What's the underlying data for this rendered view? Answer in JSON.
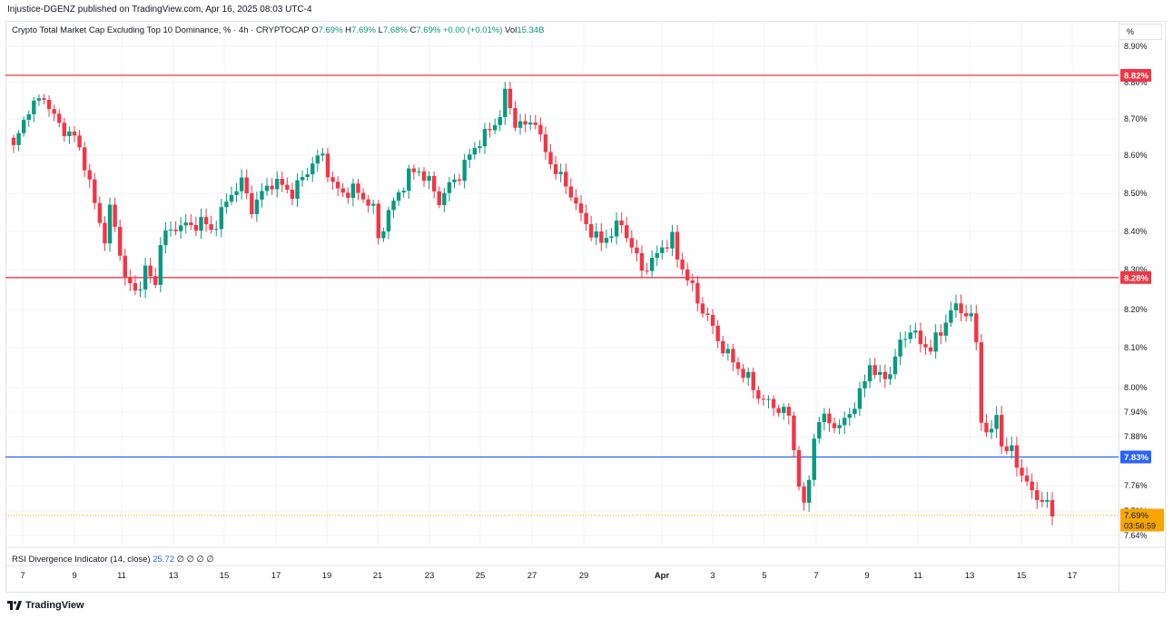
{
  "header": {
    "publish_line": "Injustice-DGENZ published on TradingView.com, Apr 16, 2025 08:03 UTC-4"
  },
  "legend": {
    "title": "Crypto Total Market Cap Excluding Top 10 Dominance, % · 4h · CRYPTOCAP",
    "open_label": "O",
    "open": "7.69%",
    "high_label": "H",
    "high": "7.69%",
    "low_label": "L",
    "low": "7.68%",
    "close_label": "C",
    "close": "7.69%",
    "change": "+0.00 (+0.01%)",
    "vol_label": "Vol",
    "vol": "15.34B"
  },
  "scale_button": "%",
  "rsi": {
    "label": "RSI Divergence Indicator (14, close)",
    "value": "25.72",
    "empties": [
      "∅",
      "∅",
      "∅",
      "∅"
    ]
  },
  "footer": {
    "brand": "TradingView"
  },
  "colors": {
    "up": "#089981",
    "down": "#f23645",
    "red_line": "#f23645",
    "blue_line": "#2962ff",
    "last_price": "#f7a600"
  },
  "chart_data": {
    "type": "candlestick",
    "x_tick_labels": [
      "7",
      "9",
      "11",
      "13",
      "15",
      "17",
      "19",
      "21",
      "23",
      "25",
      "27",
      "29",
      "Apr",
      "3",
      "5",
      "7",
      "9",
      "11",
      "13",
      "15",
      "17"
    ],
    "y_tick_labels": [
      "8.90%",
      "8.80%",
      "8.70%",
      "8.60%",
      "8.50%",
      "8.40%",
      "8.30%",
      "8.20%",
      "8.10%",
      "8.00%",
      "7.94%",
      "7.88%",
      "7.76%",
      "7.70%",
      "7.64%"
    ],
    "y_ticks": [
      8.9,
      8.8,
      8.7,
      8.6,
      8.5,
      8.4,
      8.3,
      8.2,
      8.1,
      8.0,
      7.94,
      7.88,
      7.76,
      7.7,
      7.64
    ],
    "ylim": [
      7.64,
      8.9
    ],
    "horizontal_lines": [
      {
        "value": 8.82,
        "label": "8.82%",
        "color": "red"
      },
      {
        "value": 8.28,
        "label": "8.28%",
        "color": "red"
      },
      {
        "value": 7.83,
        "label": "7.83%",
        "color": "blue"
      }
    ],
    "last_price": {
      "value": 7.69,
      "label": "7.69%",
      "countdown": "03:56:59"
    },
    "close_path": [
      [
        0,
        8.62
      ],
      [
        3,
        8.73
      ],
      [
        6,
        8.76
      ],
      [
        9,
        8.68
      ],
      [
        12,
        8.65
      ],
      [
        14,
        8.58
      ],
      [
        16,
        8.47
      ],
      [
        18,
        8.38
      ],
      [
        19,
        8.46
      ],
      [
        21,
        8.35
      ],
      [
        22,
        8.28
      ],
      [
        24,
        8.24
      ],
      [
        26,
        8.3
      ],
      [
        28,
        8.26
      ],
      [
        29,
        8.38
      ],
      [
        31,
        8.4
      ],
      [
        33,
        8.42
      ],
      [
        35,
        8.41
      ],
      [
        37,
        8.43
      ],
      [
        39,
        8.4
      ],
      [
        41,
        8.45
      ],
      [
        43,
        8.5
      ],
      [
        45,
        8.53
      ],
      [
        47,
        8.46
      ],
      [
        49,
        8.5
      ],
      [
        51,
        8.53
      ],
      [
        53,
        8.52
      ],
      [
        55,
        8.5
      ],
      [
        57,
        8.54
      ],
      [
        59,
        8.58
      ],
      [
        61,
        8.6
      ],
      [
        63,
        8.52
      ],
      [
        65,
        8.5
      ],
      [
        67,
        8.51
      ],
      [
        69,
        8.49
      ],
      [
        71,
        8.46
      ],
      [
        72,
        8.38
      ],
      [
        74,
        8.45
      ],
      [
        76,
        8.5
      ],
      [
        78,
        8.55
      ],
      [
        80,
        8.56
      ],
      [
        82,
        8.53
      ],
      [
        84,
        8.48
      ],
      [
        86,
        8.52
      ],
      [
        88,
        8.55
      ],
      [
        90,
        8.6
      ],
      [
        92,
        8.64
      ],
      [
        94,
        8.67
      ],
      [
        96,
        8.71
      ],
      [
        97,
        8.77
      ],
      [
        99,
        8.69
      ],
      [
        101,
        8.68
      ],
      [
        103,
        8.7
      ],
      [
        104,
        8.64
      ],
      [
        106,
        8.58
      ],
      [
        108,
        8.54
      ],
      [
        110,
        8.5
      ],
      [
        112,
        8.44
      ],
      [
        114,
        8.4
      ],
      [
        116,
        8.37
      ],
      [
        118,
        8.4
      ],
      [
        120,
        8.42
      ],
      [
        122,
        8.36
      ],
      [
        124,
        8.3
      ],
      [
        126,
        8.32
      ],
      [
        128,
        8.36
      ],
      [
        130,
        8.38
      ],
      [
        131,
        8.33
      ],
      [
        133,
        8.28
      ],
      [
        135,
        8.22
      ],
      [
        137,
        8.18
      ],
      [
        139,
        8.12
      ],
      [
        141,
        8.08
      ],
      [
        143,
        8.05
      ],
      [
        145,
        8.02
      ],
      [
        147,
        7.98
      ],
      [
        149,
        7.96
      ],
      [
        151,
        7.95
      ],
      [
        153,
        7.93
      ],
      [
        154,
        7.85
      ],
      [
        155,
        7.77
      ],
      [
        156,
        7.7
      ],
      [
        157,
        7.78
      ],
      [
        158,
        7.88
      ],
      [
        159,
        7.92
      ],
      [
        161,
        7.92
      ],
      [
        163,
        7.9
      ],
      [
        165,
        7.94
      ],
      [
        167,
        7.98
      ],
      [
        169,
        8.06
      ],
      [
        171,
        8.02
      ],
      [
        173,
        8.04
      ],
      [
        175,
        8.11
      ],
      [
        177,
        8.15
      ],
      [
        179,
        8.11
      ],
      [
        181,
        8.1
      ],
      [
        183,
        8.14
      ],
      [
        185,
        8.2
      ],
      [
        187,
        8.2
      ],
      [
        189,
        8.18
      ],
      [
        190,
        8.11
      ],
      [
        191,
        7.92
      ],
      [
        193,
        7.88
      ],
      [
        194,
        7.94
      ],
      [
        195,
        7.86
      ],
      [
        197,
        7.84
      ],
      [
        199,
        7.79
      ],
      [
        201,
        7.74
      ],
      [
        203,
        7.73
      ],
      [
        205,
        7.69
      ]
    ]
  }
}
